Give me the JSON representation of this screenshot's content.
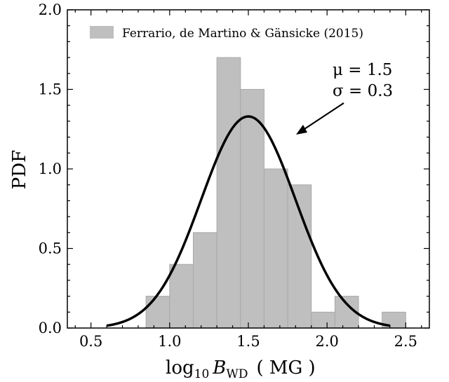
{
  "chart_data": {
    "type": "bar",
    "xlabel": {
      "prefix": "log",
      "sub1": "10",
      "var": "B",
      "sub2": "WD",
      "unit": "( MG )"
    },
    "ylabel": "PDF",
    "xlim": [
      0.35,
      2.65
    ],
    "ylim": [
      0.0,
      2.0
    ],
    "xticks": [
      "0.5",
      "1.0",
      "1.5",
      "2.0",
      "2.5"
    ],
    "xtick_values": [
      0.5,
      1.0,
      1.5,
      2.0,
      2.5
    ],
    "yticks": [
      "0.0",
      "0.5",
      "1.0",
      "1.5",
      "2.0"
    ],
    "ytick_values": [
      0.0,
      0.5,
      1.0,
      1.5,
      2.0
    ],
    "grid": false,
    "legend": {
      "label": "Ferrario, de Martino & Gänsicke (2015)",
      "location": "top-left",
      "color": "#bfbfbf"
    },
    "histogram": {
      "name": "Ferrario, de Martino & Gänsicke (2015)",
      "color": "#bfbfbf",
      "bins": [
        {
          "x0": 0.85,
          "x1": 1.0,
          "value": 0.2
        },
        {
          "x0": 1.0,
          "x1": 1.15,
          "value": 0.4
        },
        {
          "x0": 1.15,
          "x1": 1.3,
          "value": 0.6
        },
        {
          "x0": 1.3,
          "x1": 1.45,
          "value": 1.7
        },
        {
          "x0": 1.45,
          "x1": 1.6,
          "value": 1.5
        },
        {
          "x0": 1.6,
          "x1": 1.75,
          "value": 1.0
        },
        {
          "x0": 1.75,
          "x1": 1.9,
          "value": 0.9
        },
        {
          "x0": 1.9,
          "x1": 2.05,
          "value": 0.1
        },
        {
          "x0": 2.05,
          "x1": 2.2,
          "value": 0.2
        },
        {
          "x0": 2.2,
          "x1": 2.35,
          "value": 0.0
        },
        {
          "x0": 2.35,
          "x1": 2.5,
          "value": 0.1
        }
      ]
    },
    "curve": {
      "type": "gaussian",
      "mu": 1.5,
      "sigma": 0.3,
      "x_range": [
        0.6,
        2.4
      ],
      "color": "#000000"
    },
    "annotation": {
      "lines": [
        "μ = 1.5",
        "σ = 0.3"
      ],
      "arrow": true
    }
  }
}
